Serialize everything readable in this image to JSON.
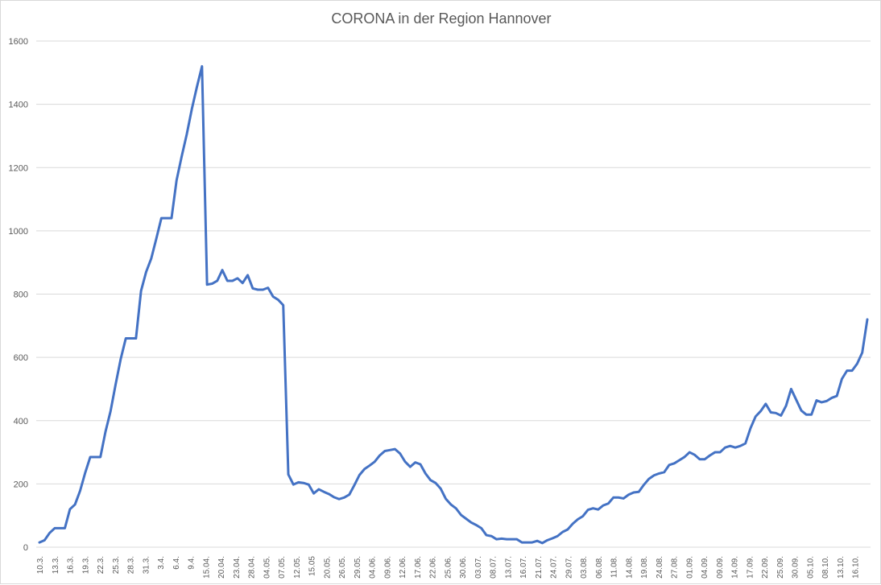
{
  "chart_data": {
    "type": "line",
    "title": "CORONA in der Region Hannover",
    "xlabel": "",
    "ylabel": "",
    "ylim": [
      0,
      1600
    ],
    "yticks": [
      0,
      200,
      400,
      600,
      800,
      1000,
      1200,
      1400,
      1600
    ],
    "grid": true,
    "legend": "none",
    "color": "#4472C4",
    "x_tick_labels": [
      "10.3.",
      "13.3.",
      "16.3.",
      "19.3.",
      "22.3.",
      "25.3.",
      "28.3.",
      "31.3.",
      "3.4.",
      "6.4.",
      "9.4.",
      "15.04.",
      "20.04.",
      "23.04.",
      "28.04.",
      "04.05.",
      "07.05.",
      "12.05.",
      "15.05",
      "20.05.",
      "26.05.",
      "29.05.",
      "04.06.",
      "09.06.",
      "12.06.",
      "17.06.",
      "22.06.",
      "25.06.",
      "30.06.",
      "03.07.",
      "08.07.",
      "13.07.",
      "16.07.",
      "21.07.",
      "24.07.",
      "29.07.",
      "03.08.",
      "06.08.",
      "11.08.",
      "14.08.",
      "19.08.",
      "24.08.",
      "27.08.",
      "01.09.",
      "04.09.",
      "09.09.",
      "14.09.",
      "17.09.",
      "22.09.",
      "25.09.",
      "30.09.",
      "05.10.",
      "08.10.",
      "13.10.",
      "16.10."
    ],
    "values": [
      15,
      22,
      45,
      60,
      60,
      60,
      120,
      135,
      178,
      235,
      285,
      285,
      285,
      365,
      430,
      515,
      595,
      660,
      660,
      660,
      810,
      870,
      912,
      975,
      1040,
      1040,
      1040,
      1160,
      1235,
      1305,
      1385,
      1455,
      1520,
      830,
      833,
      842,
      876,
      842,
      842,
      850,
      835,
      860,
      818,
      814,
      814,
      820,
      792,
      782,
      765,
      230,
      198,
      205,
      203,
      198,
      170,
      183,
      175,
      168,
      158,
      152,
      157,
      166,
      196,
      228,
      247,
      258,
      270,
      290,
      304,
      307,
      310,
      296,
      270,
      254,
      268,
      262,
      233,
      212,
      203,
      185,
      153,
      135,
      123,
      102,
      90,
      78,
      70,
      60,
      38,
      35,
      25,
      27,
      25,
      25,
      25,
      15,
      15,
      15,
      20,
      13,
      22,
      28,
      35,
      48,
      56,
      74,
      88,
      98,
      118,
      123,
      119,
      132,
      138,
      157,
      157,
      154,
      166,
      173,
      175,
      197,
      216,
      227,
      233,
      237,
      260,
      265,
      275,
      285,
      300,
      292,
      278,
      278,
      290,
      300,
      300,
      315,
      320,
      315,
      320,
      328,
      376,
      413,
      430,
      453,
      426,
      424,
      416,
      447,
      500,
      466,
      432,
      419,
      419,
      464,
      458,
      462,
      472,
      478,
      532,
      558,
      558,
      580,
      615,
      720
    ]
  }
}
